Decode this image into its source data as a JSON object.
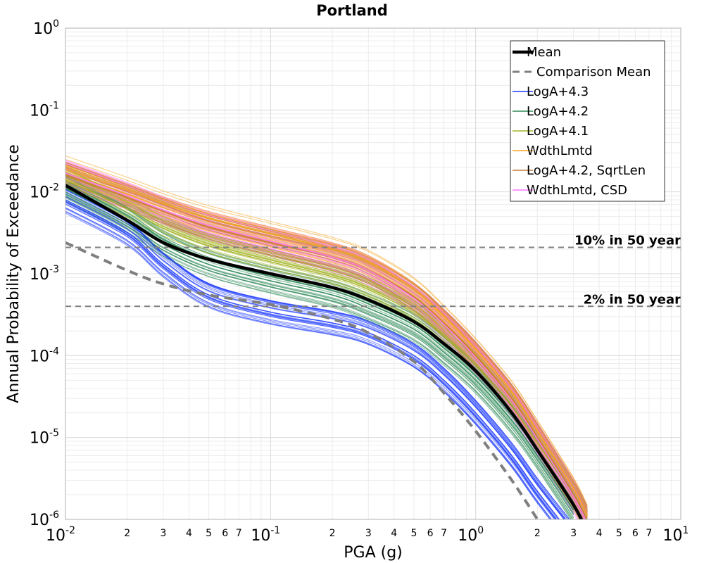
{
  "chart_data": {
    "type": "line",
    "title": "Portland",
    "xlabel": "PGA (g)",
    "ylabel": "Annual Probability of Exceedance",
    "xscale": "log",
    "yscale": "log",
    "xlim": [
      0.01,
      10
    ],
    "ylim": [
      1e-06,
      1
    ],
    "grid": true,
    "legend_position": "top-right",
    "x_major_ticks": [
      {
        "value": 0.01,
        "base": "10",
        "exp": "-2"
      },
      {
        "value": 0.1,
        "base": "10",
        "exp": "-1"
      },
      {
        "value": 1,
        "base": "10",
        "exp": "0"
      },
      {
        "value": 10,
        "base": "10",
        "exp": "1"
      }
    ],
    "y_major_ticks": [
      {
        "value": 1,
        "base": "10",
        "exp": "0"
      },
      {
        "value": 0.1,
        "base": "10",
        "exp": "-1"
      },
      {
        "value": 0.01,
        "base": "10",
        "exp": "-2"
      },
      {
        "value": 0.001,
        "base": "10",
        "exp": "-3"
      },
      {
        "value": 0.0001,
        "base": "10",
        "exp": "-4"
      },
      {
        "value": 1e-05,
        "base": "10",
        "exp": "-5"
      },
      {
        "value": 1e-06,
        "base": "10",
        "exp": "-6"
      }
    ],
    "x_minor_labels": [
      "2",
      "3",
      "4",
      "5",
      "6",
      "7"
    ],
    "reference_lines": [
      {
        "label": "10% in 50 year",
        "y": 0.0021,
        "color": "#808080"
      },
      {
        "label": "2% in 50 year",
        "y": 0.0004,
        "color": "#808080"
      }
    ],
    "x": [
      0.01,
      0.02,
      0.03,
      0.05,
      0.1,
      0.2,
      0.3,
      0.5,
      0.7,
      1,
      1.5,
      2,
      3,
      3.5
    ],
    "series": [
      {
        "name": "Mean",
        "color": "#000000",
        "style": "solid",
        "values": [
          0.012,
          0.0045,
          0.0024,
          0.0015,
          0.001,
          0.00068,
          0.00048,
          0.00026,
          0.00014,
          6.5e-05,
          2e-05,
          7e-06,
          1.5e-06,
          7e-07
        ]
      },
      {
        "name": "Comparison Mean",
        "color": "#7f7f7f",
        "style": "dashed",
        "values": [
          0.0024,
          0.0011,
          0.00075,
          0.00055,
          0.00042,
          0.00028,
          0.00019,
          8.5e-05,
          3.5e-05,
          1.2e-05,
          3e-06,
          1e-06,
          null,
          null
        ]
      },
      {
        "name": "LogA+4.3",
        "color": "#1f3cff",
        "style": "solid",
        "values": [
          0.008,
          0.0032,
          0.0013,
          0.00055,
          0.00034,
          0.00025,
          0.00019,
          0.0001,
          5e-05,
          2e-05,
          6e-06,
          2.2e-06,
          6e-07,
          null
        ]
      },
      {
        "name": "LogA+4.2",
        "color": "#2e8b57",
        "style": "solid",
        "values": [
          0.011,
          0.0045,
          0.0023,
          0.0013,
          0.00082,
          0.00055,
          0.00038,
          0.00021,
          0.00011,
          5e-05,
          1.6e-05,
          6e-06,
          1.3e-06,
          null
        ]
      },
      {
        "name": "LogA+4.1",
        "color": "#a3b320",
        "style": "solid",
        "values": [
          0.014,
          0.0062,
          0.0036,
          0.0022,
          0.0014,
          0.00092,
          0.00064,
          0.00033,
          0.00017,
          7.5e-05,
          2.4e-05,
          8.5e-06,
          1.9e-06,
          9e-07
        ]
      },
      {
        "name": "WdthLmtd",
        "color": "#f5a623",
        "style": "solid",
        "values": [
          0.019,
          0.0105,
          0.0072,
          0.0048,
          0.0031,
          0.002,
          0.0014,
          0.00065,
          0.0003,
          0.00012,
          3.6e-05,
          1.2e-05,
          2.4e-06,
          1.1e-06
        ]
      },
      {
        "name": "LogA+4.2, SqrtLen",
        "color": "#c87933",
        "style": "solid",
        "values": [
          0.016,
          0.0085,
          0.0058,
          0.0037,
          0.0024,
          0.0016,
          0.0011,
          0.00052,
          0.00025,
          0.0001,
          3e-05,
          1e-05,
          2e-06,
          9.5e-07
        ]
      },
      {
        "name": "WdthLmtd, CSD",
        "color": "#ff77ff",
        "style": "solid",
        "values": [
          0.017,
          0.009,
          0.006,
          0.0039,
          0.0025,
          0.0016,
          0.0011,
          0.0005,
          0.00024,
          9.5e-05,
          2.8e-05,
          9.5e-06,
          1.9e-06,
          9e-07
        ]
      }
    ]
  }
}
